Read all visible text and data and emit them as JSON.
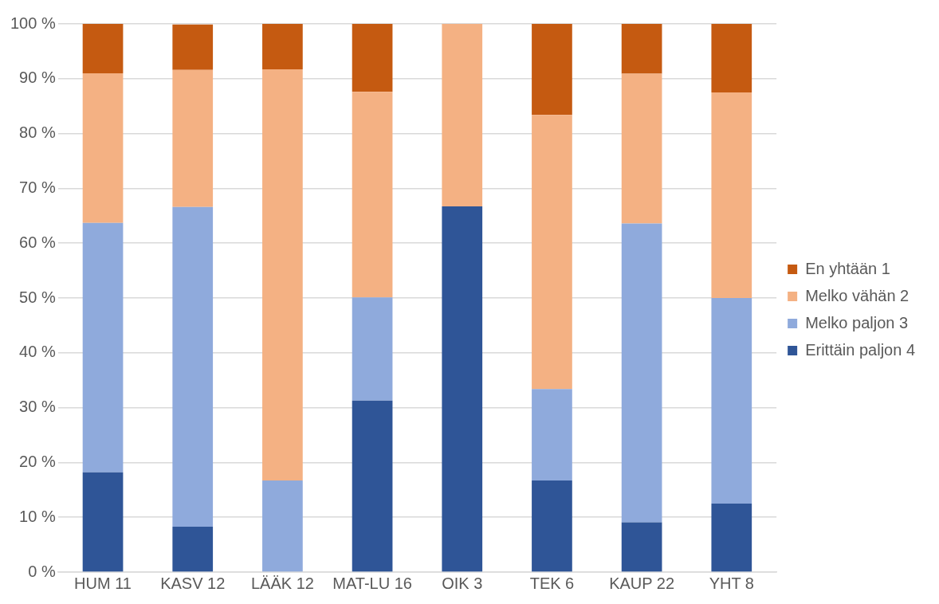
{
  "chart_data": {
    "type": "bar",
    "stacked": true,
    "categories": [
      "HUM 11",
      "KASV 12",
      "LÄÄK 12",
      "MAT-LU 16",
      "OIK 3",
      "TEK 6",
      "KAUP 22",
      "YHT 8"
    ],
    "series": [
      {
        "name": "Erittäin paljon 4",
        "color": "#2f5597",
        "values": [
          18.2,
          8.3,
          0,
          31.3,
          66.7,
          16.7,
          9.1,
          12.5
        ]
      },
      {
        "name": "Melko paljon 3",
        "color": "#8faadc",
        "values": [
          45.5,
          58.3,
          16.7,
          18.8,
          0,
          16.7,
          54.5,
          37.5
        ]
      },
      {
        "name": "Melko vähän 2",
        "color": "#f4b183",
        "values": [
          27.3,
          25,
          75,
          37.5,
          33.3,
          50,
          27.3,
          37.5
        ]
      },
      {
        "name": "En yhtään 1",
        "color": "#c55a11",
        "values": [
          9.1,
          8.3,
          8.3,
          12.5,
          0,
          16.7,
          9.1,
          12.5
        ]
      }
    ],
    "ylim": [
      0,
      100
    ],
    "yticks": [
      {
        "value": 0,
        "label": "0 %"
      },
      {
        "value": 10,
        "label": "10 %"
      },
      {
        "value": 20,
        "label": "20 %"
      },
      {
        "value": 30,
        "label": "30 %"
      },
      {
        "value": 40,
        "label": "40 %"
      },
      {
        "value": 50,
        "label": "50 %"
      },
      {
        "value": 60,
        "label": "60 %"
      },
      {
        "value": 70,
        "label": "70 %"
      },
      {
        "value": 80,
        "label": "80 %"
      },
      {
        "value": 90,
        "label": "90 %"
      },
      {
        "value": 100,
        "label": "100 %"
      }
    ],
    "grid": "y",
    "legend": "right"
  }
}
